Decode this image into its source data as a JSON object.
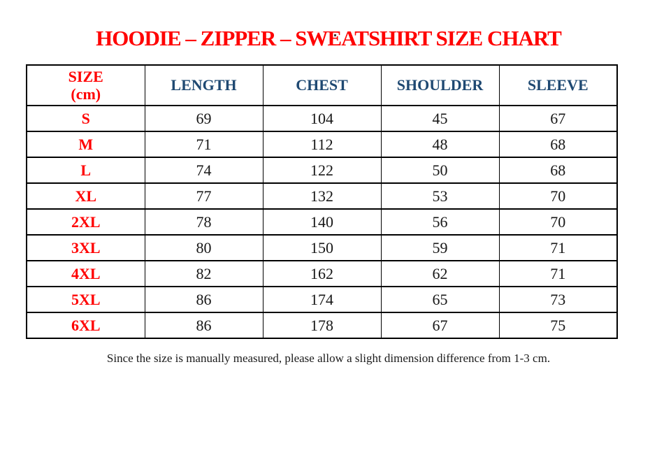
{
  "page": {
    "stray_mark": ".",
    "title": "HOODIE – ZIPPER – SWEATSHIRT SIZE CHART",
    "footer_note": "Since the size is manually measured, please allow a slight dimension difference from 1-3 cm."
  },
  "colors": {
    "title_red": "#FF0000",
    "size_label_red": "#FF0000",
    "header_blue": "#1F4972",
    "value_black": "#171717",
    "border_black": "#000000"
  },
  "table": {
    "size_header_line1": "SIZE",
    "size_header_line2": "(cm)",
    "measure_columns": [
      "LENGTH",
      "CHEST",
      "SHOULDER",
      "SLEEVE"
    ]
  },
  "chart_data": {
    "type": "table",
    "title": "HOODIE – ZIPPER – SWEATSHIRT SIZE CHART",
    "unit": "cm",
    "columns": [
      "SIZE (cm)",
      "LENGTH",
      "CHEST",
      "SHOULDER",
      "SLEEVE"
    ],
    "rows": [
      {
        "size": "S",
        "length": 69,
        "chest": 104,
        "shoulder": 45,
        "sleeve": 67
      },
      {
        "size": "M",
        "length": 71,
        "chest": 112,
        "shoulder": 48,
        "sleeve": 68
      },
      {
        "size": "L",
        "length": 74,
        "chest": 122,
        "shoulder": 50,
        "sleeve": 68
      },
      {
        "size": "XL",
        "length": 77,
        "chest": 132,
        "shoulder": 53,
        "sleeve": 70
      },
      {
        "size": "2XL",
        "length": 78,
        "chest": 140,
        "shoulder": 56,
        "sleeve": 70
      },
      {
        "size": "3XL",
        "length": 80,
        "chest": 150,
        "shoulder": 59,
        "sleeve": 71
      },
      {
        "size": "4XL",
        "length": 82,
        "chest": 162,
        "shoulder": 62,
        "sleeve": 71
      },
      {
        "size": "5XL",
        "length": 86,
        "chest": 174,
        "shoulder": 65,
        "sleeve": 73
      },
      {
        "size": "6XL",
        "length": 86,
        "chest": 178,
        "shoulder": 67,
        "sleeve": 75
      }
    ],
    "note": "Since the size is manually measured, please allow a slight dimension difference from 1-3 cm."
  }
}
